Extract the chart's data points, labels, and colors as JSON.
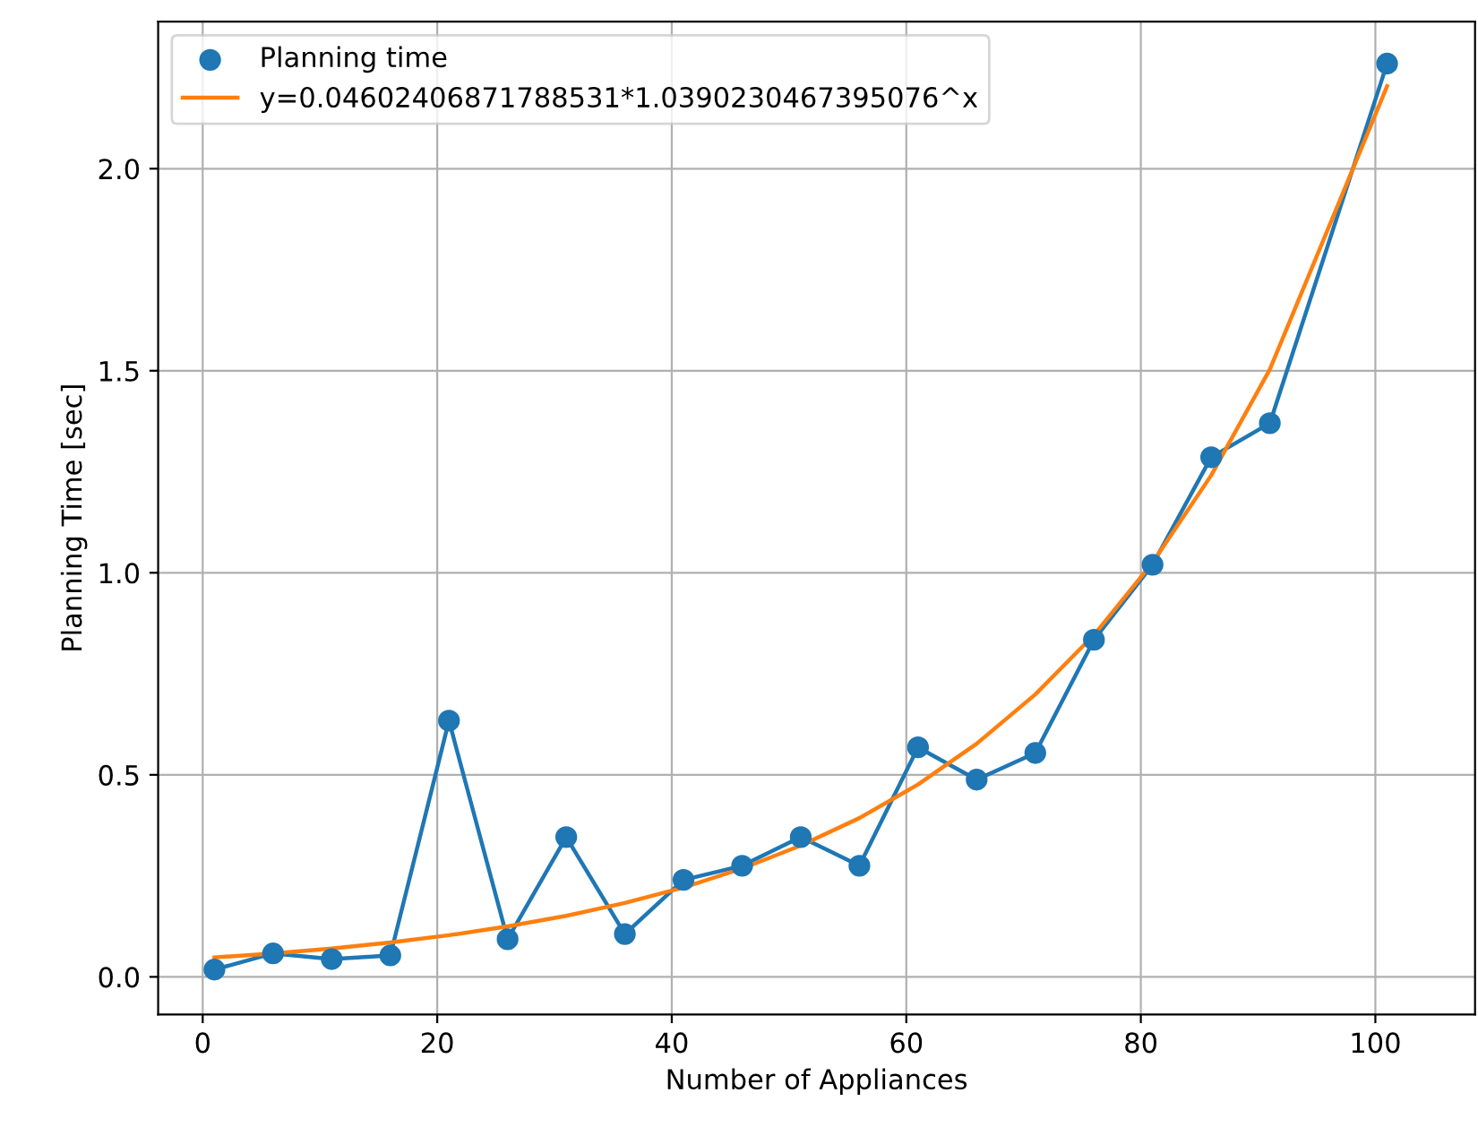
{
  "chart_data": {
    "type": "scatter",
    "xlabel": "Number of Appliances",
    "ylabel": "Planning Time [sec]",
    "x": [
      1,
      6,
      11,
      16,
      21,
      26,
      31,
      36,
      41,
      46,
      51,
      56,
      61,
      66,
      71,
      76,
      81,
      86,
      91,
      101
    ],
    "series": [
      {
        "type": "line",
        "color": "#1f77b4",
        "values": [
          0.018,
          0.058,
          0.044,
          0.053,
          0.634,
          0.093,
          0.346,
          0.106,
          0.24,
          0.275,
          0.346,
          0.275,
          0.568,
          0.488,
          0.554,
          0.834,
          1.02,
          1.286,
          1.37,
          2.26
        ]
      },
      {
        "name": "Planning time",
        "color": "#1f77b4",
        "marker": "circle",
        "values": [
          0.018,
          0.058,
          0.044,
          0.053,
          0.634,
          0.093,
          0.346,
          0.106,
          0.24,
          0.275,
          0.346,
          0.275,
          0.568,
          0.488,
          0.554,
          0.834,
          1.02,
          1.286,
          1.37,
          2.26
        ]
      },
      {
        "type": "line",
        "name": "y=0.04602406871788531*1.0390230467395076^x",
        "color": "#ff7f0e",
        "values": [
          0.048,
          0.058,
          0.07,
          0.085,
          0.103,
          0.125,
          0.151,
          0.183,
          0.221,
          0.268,
          0.325,
          0.393,
          0.476,
          0.577,
          0.699,
          0.846,
          1.025,
          1.241,
          1.503,
          2.204
        ]
      }
    ],
    "xlim": [
      -3.8,
      108.5
    ],
    "ylim": [
      -0.093,
      2.364
    ],
    "xticks": [
      0,
      20,
      40,
      60,
      80,
      100
    ],
    "yticks": [
      {
        "value": 0,
        "label": "0.0"
      },
      {
        "value": 0.5,
        "label": "0.5"
      },
      {
        "value": 1,
        "label": "1.0"
      },
      {
        "value": 1.5,
        "label": "1.5"
      },
      {
        "value": 2,
        "label": "2.0"
      }
    ],
    "grid": true,
    "legend": "top left"
  }
}
